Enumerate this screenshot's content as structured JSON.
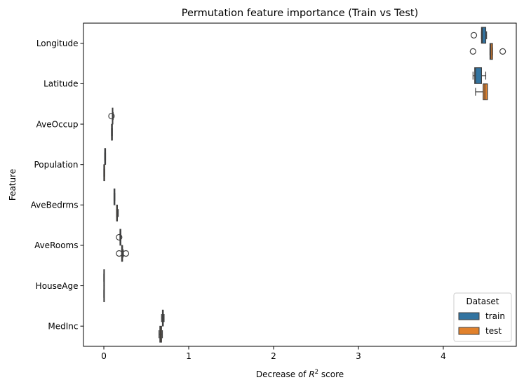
{
  "chart_data": {
    "type": "boxplot-horizontal",
    "title": "Permutation feature importance (Train vs Test)",
    "xlabel_prefix": "Decrease of ",
    "xlabel_var": "R",
    "xlabel_sup": "2",
    "xlabel_suffix": " score",
    "ylabel": "Feature",
    "xlim": [
      -0.24,
      4.86
    ],
    "xticks": [
      0,
      1,
      2,
      3,
      4
    ],
    "categories": [
      "Longitude",
      "Latitude",
      "AveOccup",
      "Population",
      "AveBedrms",
      "AveRooms",
      "HouseAge",
      "MedInc"
    ],
    "series": [
      {
        "name": "train",
        "color": "#3274a1",
        "boxes": [
          {
            "feature": "Longitude",
            "whislo": 4.45,
            "q1": 4.45,
            "med": 4.46,
            "q3": 4.5,
            "whishi": 4.51,
            "fliers": [
              4.36
            ]
          },
          {
            "feature": "Latitude",
            "whislo": 4.35,
            "q1": 4.37,
            "med": 4.38,
            "q3": 4.45,
            "whishi": 4.5,
            "fliers": []
          },
          {
            "feature": "AveOccup",
            "whislo": 0.1,
            "q1": 0.1,
            "med": 0.1,
            "q3": 0.1,
            "whishi": 0.11,
            "fliers": [
              0.09
            ]
          },
          {
            "feature": "Population",
            "whislo": 0.01,
            "q1": 0.01,
            "med": 0.02,
            "q3": 0.02,
            "whishi": 0.02,
            "fliers": []
          },
          {
            "feature": "AveBedrms",
            "whislo": 0.12,
            "q1": 0.12,
            "med": 0.12,
            "q3": 0.13,
            "whishi": 0.13,
            "fliers": []
          },
          {
            "feature": "AveRooms",
            "whislo": 0.19,
            "q1": 0.19,
            "med": 0.2,
            "q3": 0.2,
            "whishi": 0.2,
            "fliers": [
              0.18
            ]
          },
          {
            "feature": "HouseAge",
            "whislo": 0.0,
            "q1": 0.0,
            "med": 0.0,
            "q3": 0.0,
            "whishi": 0.0,
            "fliers": []
          },
          {
            "feature": "MedInc",
            "whislo": 0.68,
            "q1": 0.69,
            "med": 0.7,
            "q3": 0.7,
            "whishi": 0.71,
            "fliers": []
          }
        ]
      },
      {
        "name": "test",
        "color": "#e1812c",
        "boxes": [
          {
            "feature": "Longitude",
            "whislo": 4.55,
            "q1": 4.55,
            "med": 4.56,
            "q3": 4.58,
            "whishi": 4.58,
            "fliers": [
              4.35,
              4.7
            ]
          },
          {
            "feature": "Latitude",
            "whislo": 4.38,
            "q1": 4.47,
            "med": 4.49,
            "q3": 4.52,
            "whishi": 4.52,
            "fliers": []
          },
          {
            "feature": "AveOccup",
            "whislo": 0.09,
            "q1": 0.09,
            "med": 0.1,
            "q3": 0.1,
            "whishi": 0.1,
            "fliers": []
          },
          {
            "feature": "Population",
            "whislo": 0.0,
            "q1": 0.0,
            "med": 0.0,
            "q3": 0.01,
            "whishi": 0.01,
            "fliers": []
          },
          {
            "feature": "AveBedrms",
            "whislo": 0.15,
            "q1": 0.15,
            "med": 0.16,
            "q3": 0.16,
            "whishi": 0.17,
            "fliers": []
          },
          {
            "feature": "AveRooms",
            "whislo": 0.21,
            "q1": 0.21,
            "med": 0.22,
            "q3": 0.22,
            "whishi": 0.23,
            "fliers": [
              0.18,
              0.26
            ]
          },
          {
            "feature": "HouseAge",
            "whislo": 0.0,
            "q1": 0.0,
            "med": 0.0,
            "q3": 0.0,
            "whishi": 0.0,
            "fliers": []
          },
          {
            "feature": "MedInc",
            "whislo": 0.65,
            "q1": 0.66,
            "med": 0.67,
            "q3": 0.68,
            "whishi": 0.69,
            "fliers": []
          }
        ]
      }
    ],
    "legend": {
      "title": "Dataset",
      "position": "lower right"
    },
    "grid": false
  }
}
